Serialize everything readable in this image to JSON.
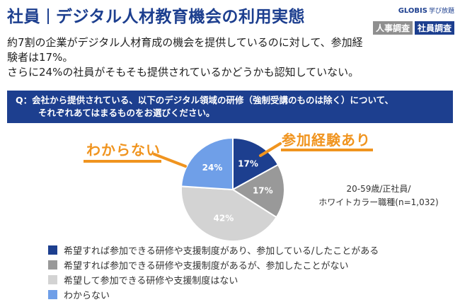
{
  "header": {
    "title_main": "社員",
    "title_sub": "デジタル人材教育機会の利用実態",
    "brand": "GLOBIS",
    "brand_sub": "学び放題",
    "tags": [
      "人事調査",
      "社員調査"
    ]
  },
  "lead": {
    "line1": "約7割の企業がデジタル人材育成の機会を提供しているのに対して、参加経",
    "line2": "験者は17%。",
    "line3": "さらに24%の社員がそもそも提供されているかどうかも認知していない。"
  },
  "question": {
    "line1": "Q：会社から提供されている、以下のデジタル領域の研修（強制受講のものは除く）について、",
    "line2": "それぞれあてはまるものをお選びください。"
  },
  "callouts": {
    "left": "わからない",
    "right": "参加経験あり"
  },
  "note": {
    "line1": "20-59歳/正社員/",
    "line2": "ホワイトカラー職種(n=1,032)"
  },
  "chart_data": {
    "type": "pie",
    "slices": [
      {
        "name": "希望すれば参加できる研修や支援制度があり、参加している/したことがある",
        "value": 17,
        "label": "17%",
        "color": "#1d3f8f"
      },
      {
        "name": "希望すれば参加できる研修や支援制度があるが、参加したことがない",
        "value": 17,
        "label": "17%",
        "color": "#999999"
      },
      {
        "name": "希望して参加できる研修や支援制度はない",
        "value": 42,
        "label": "42%",
        "color": "#d3d3d3"
      },
      {
        "name": "わからない",
        "value": 24,
        "label": "24%",
        "color": "#6f9fe8"
      }
    ],
    "legend_position": "bottom-left"
  }
}
